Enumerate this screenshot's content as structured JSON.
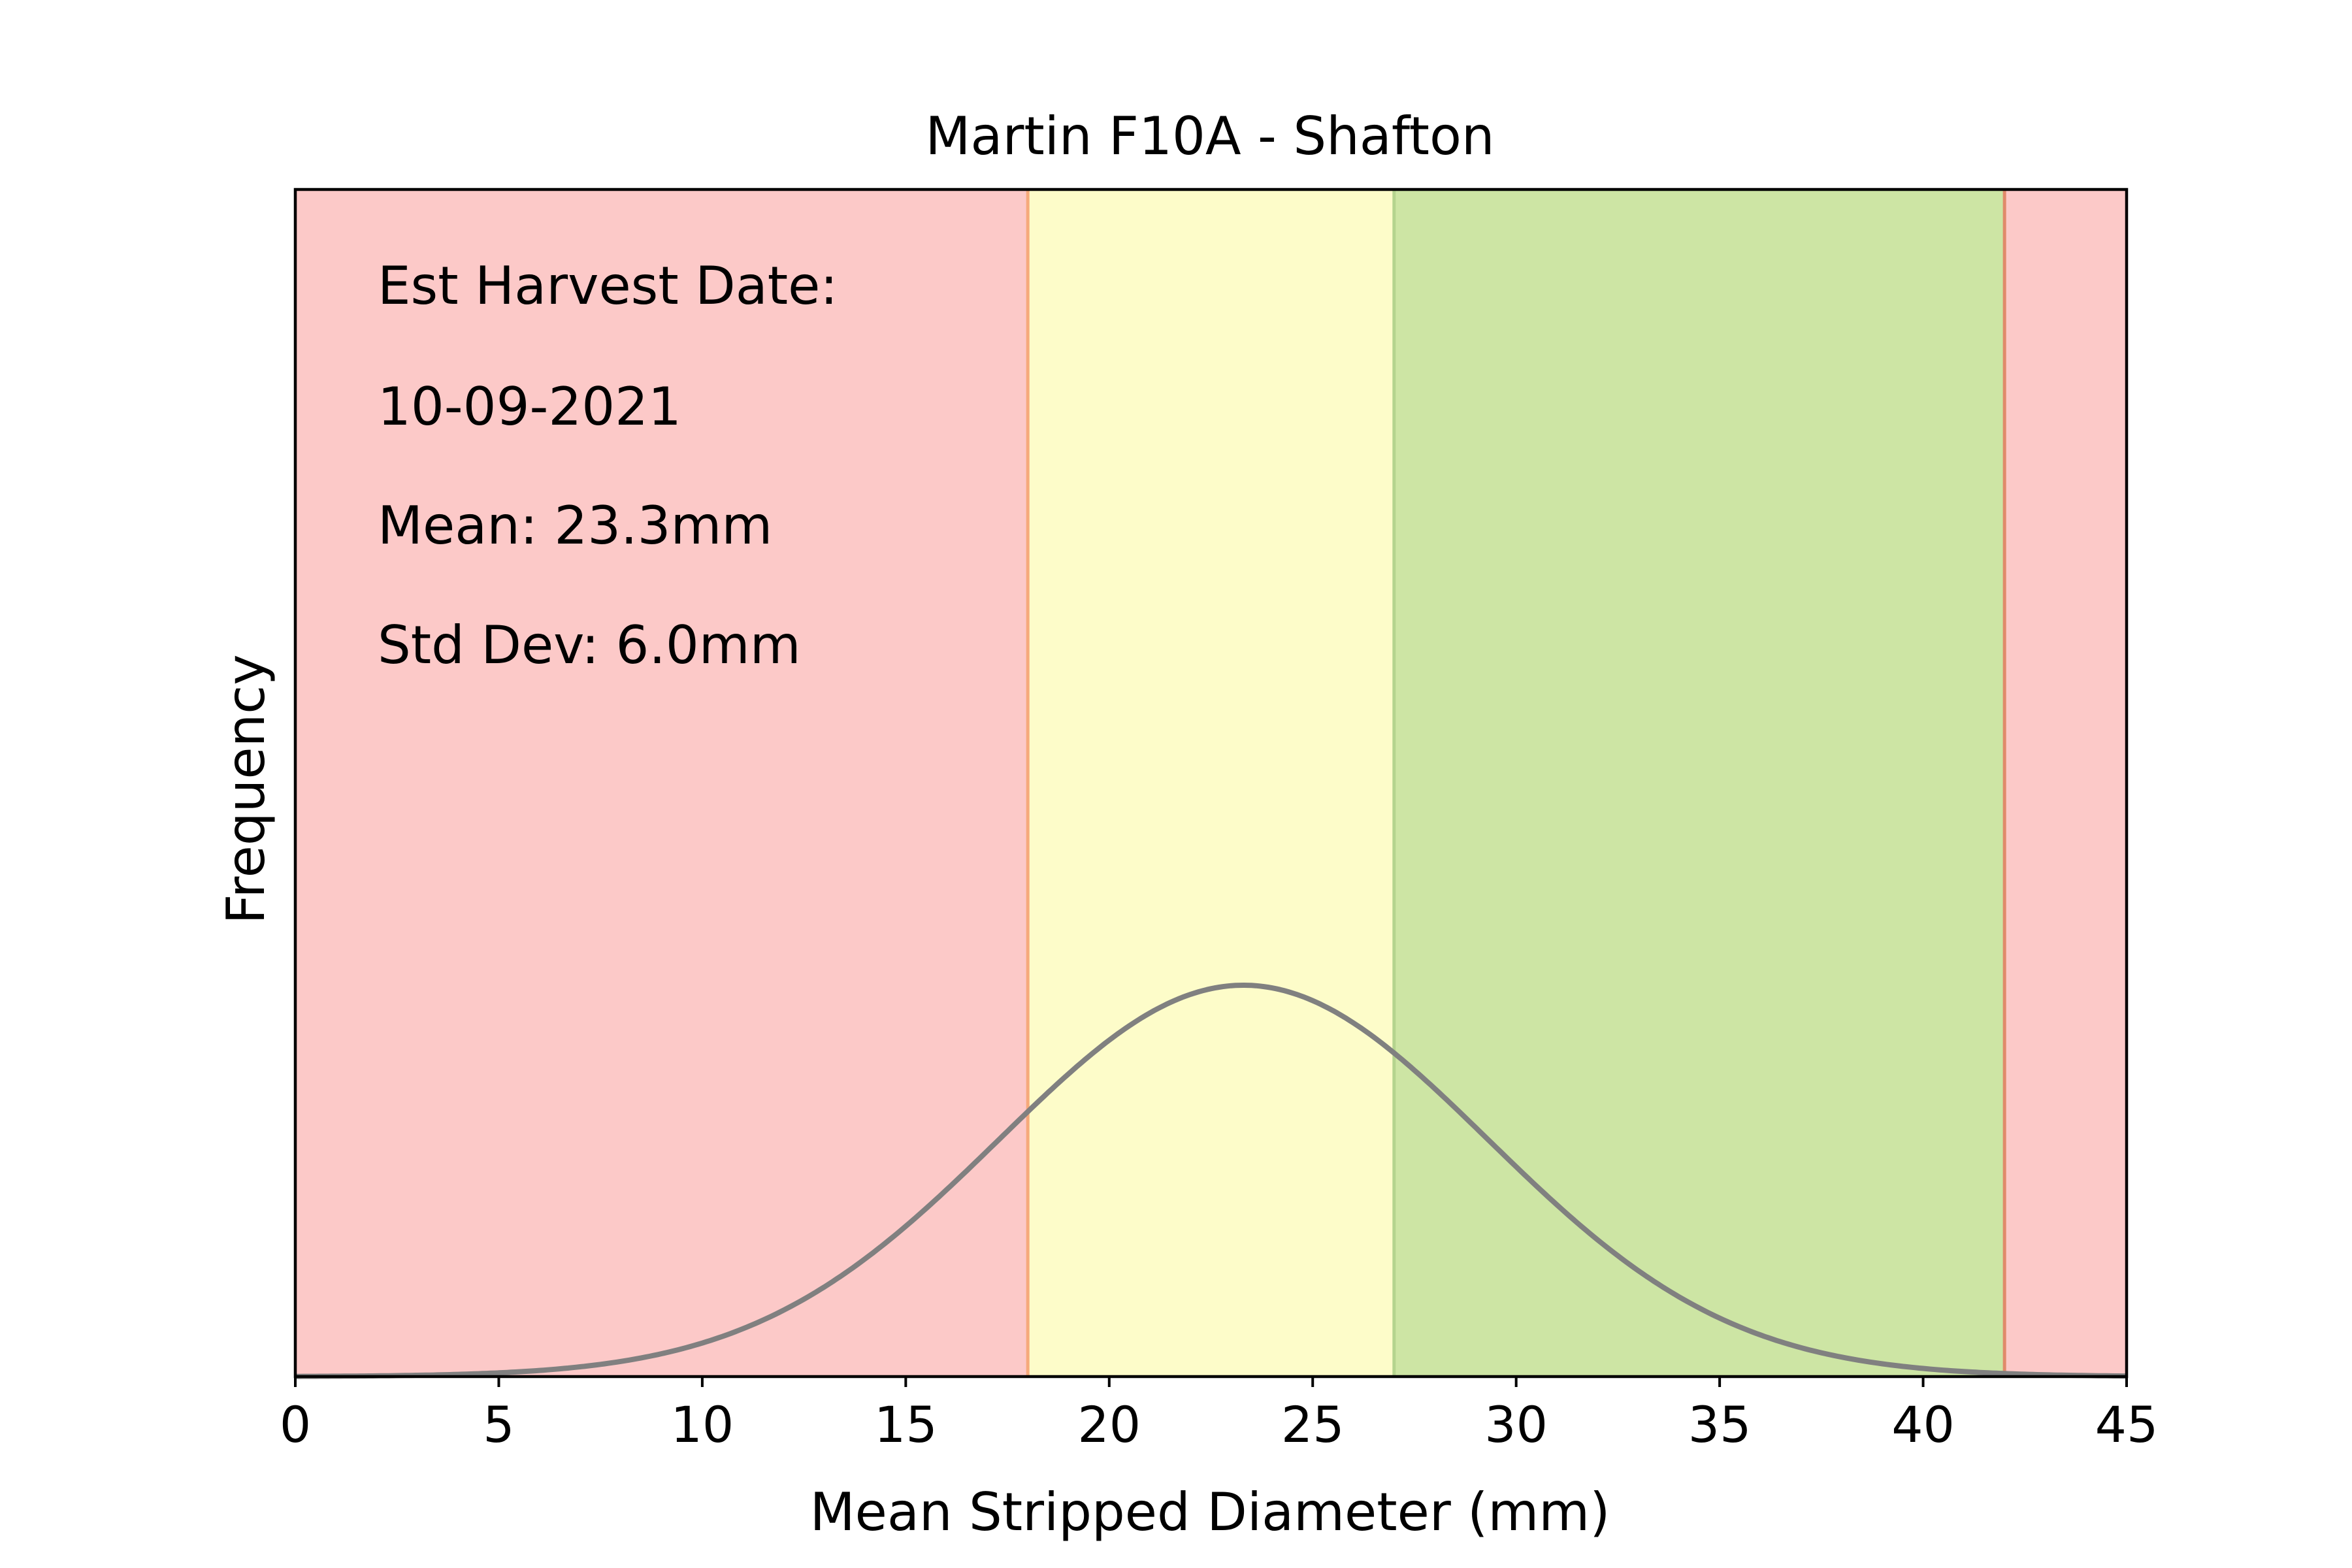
{
  "chart_data": {
    "type": "area",
    "title": "Martin F10A - Shafton",
    "xlabel": "Mean Stripped Diameter (mm)",
    "ylabel": "Frequency",
    "xlim": [
      0,
      45
    ],
    "xticks": [
      "0",
      "5",
      "10",
      "15",
      "20",
      "25",
      "30",
      "35",
      "40",
      "45"
    ],
    "grid": false,
    "yticks_visible": false,
    "zones": [
      {
        "from": 0,
        "to": 18,
        "color": "#fcc9c8"
      },
      {
        "from": 18,
        "to": 27,
        "color": "#fdfcc9"
      },
      {
        "from": 27,
        "to": 42,
        "color": "#cde5a4"
      },
      {
        "from": 42,
        "to": 45,
        "color": "#fcc9c8"
      }
    ],
    "boundaries": [
      {
        "x": 18,
        "color": "#f6a97b"
      },
      {
        "x": 27,
        "color": "#b5d48e"
      },
      {
        "x": 42,
        "color": "#e08a6a"
      }
    ],
    "curve": {
      "distribution": "normal",
      "mean": 23.3,
      "std": 6.0,
      "color": "#808080"
    },
    "annotations": [
      "Est Harvest Date:",
      "10-09-2021",
      "Mean: 23.3mm",
      "Std Dev: 6.0mm"
    ]
  }
}
